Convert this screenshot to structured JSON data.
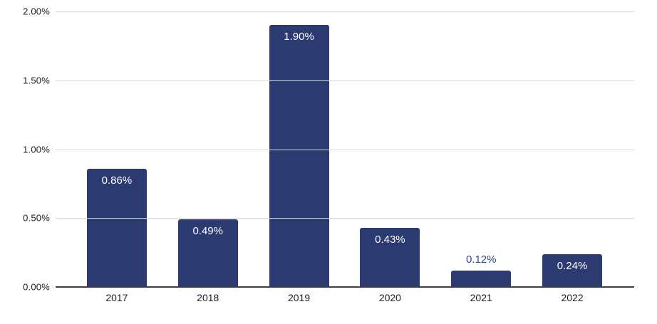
{
  "chart_data": {
    "type": "bar",
    "title": "",
    "xlabel": "",
    "ylabel": "",
    "categories": [
      "2017",
      "2018",
      "2019",
      "2020",
      "2021",
      "2022"
    ],
    "values": [
      0.86,
      0.49,
      1.9,
      0.43,
      0.12,
      0.24
    ],
    "value_labels": [
      "0.86%",
      "0.49%",
      "1.90%",
      "0.43%",
      "0.12%",
      "0.24%"
    ],
    "ylim": [
      0,
      2.0
    ],
    "ytick_step": 0.5,
    "ytick_labels": [
      "0.00%",
      "0.50%",
      "1.00%",
      "1.50%",
      "2.00%"
    ],
    "grid": true,
    "legend": false,
    "colors": {
      "bar": "#2B3A70",
      "label_inside": "#FFFFFF",
      "label_outside": "#33478C",
      "gridline": "#D9D9D9",
      "axis_line": "#3F3F3F",
      "tick_text": "#212121"
    }
  }
}
